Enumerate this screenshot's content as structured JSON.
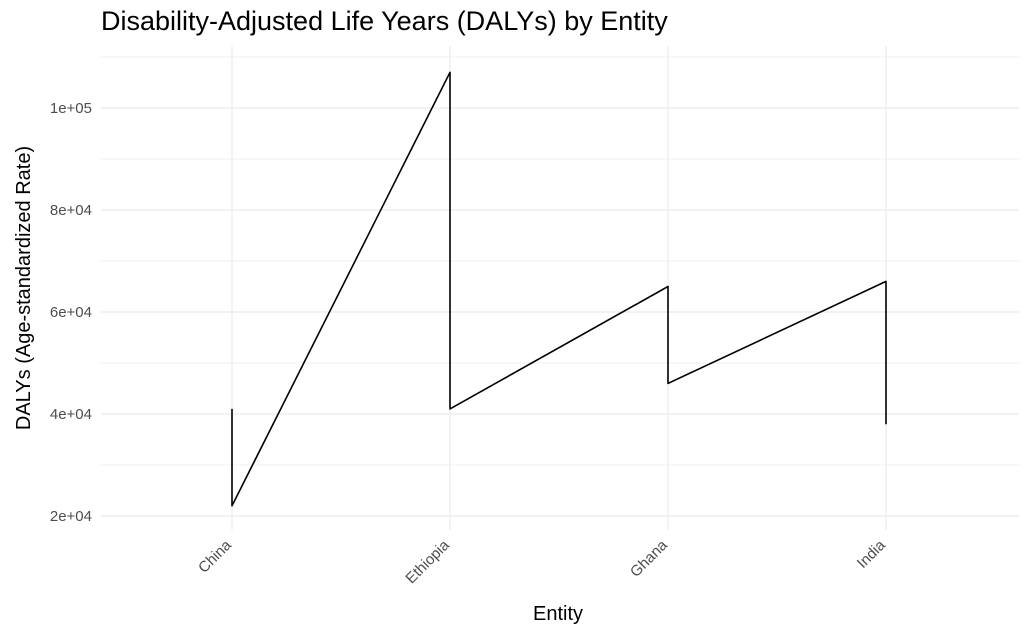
{
  "chart_data": {
    "type": "line",
    "title": "Disability-Adjusted Life Years (DALYs) by Entity",
    "xlabel": "Entity",
    "ylabel": "DALYs (Age-standardized Rate)",
    "categories": [
      "China",
      "Ethiopia",
      "Ghana",
      "India"
    ],
    "y_ticks": [
      20000,
      40000,
      60000,
      80000,
      100000
    ],
    "y_tick_labels": [
      "2e+04",
      "4e+04",
      "6e+04",
      "8e+04",
      "1e+05"
    ],
    "ylim": [
      10000,
      110000
    ],
    "grid": true,
    "line_color": "#000000",
    "points": [
      {
        "x": "China",
        "y": 41000
      },
      {
        "x": "China",
        "y": 22000
      },
      {
        "x": "Ethiopia",
        "y": 107000
      },
      {
        "x": "Ethiopia",
        "y": 41000
      },
      {
        "x": "Ghana",
        "y": 65000
      },
      {
        "x": "Ghana",
        "y": 46000
      },
      {
        "x": "India",
        "y": 66000
      },
      {
        "x": "India",
        "y": 38000
      }
    ]
  }
}
